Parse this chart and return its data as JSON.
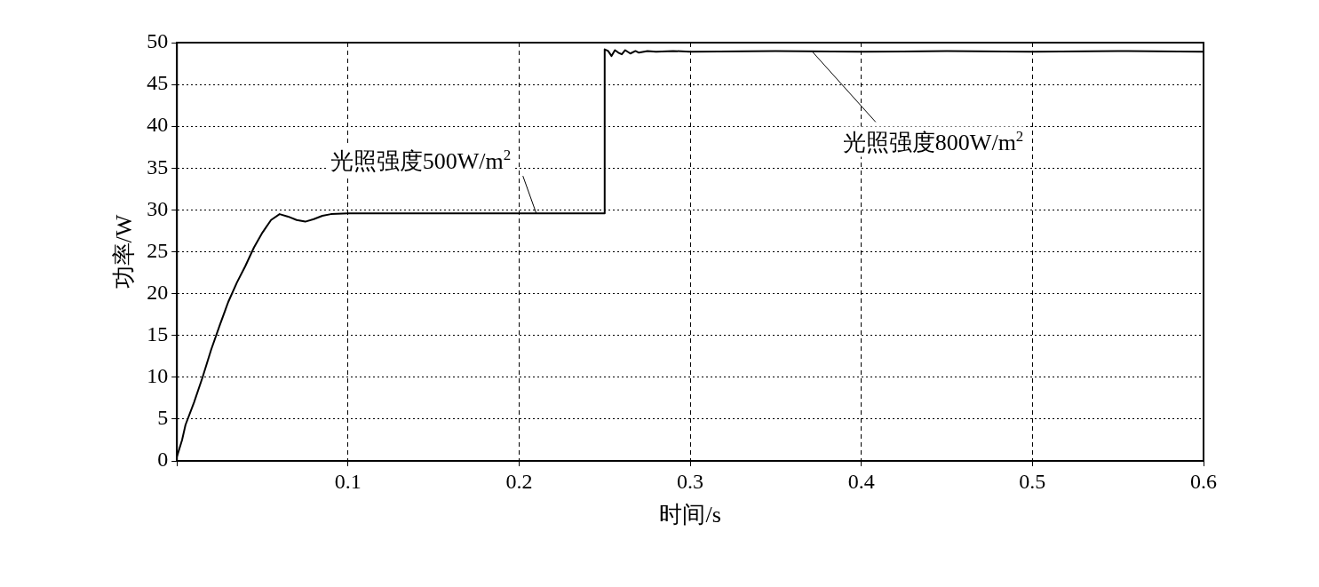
{
  "chart_data": {
    "type": "line",
    "xlabel": "时间/s",
    "ylabel": "功率/W",
    "xlim": [
      0,
      0.6
    ],
    "xticks": [
      {
        "value": 0,
        "label": null
      },
      0.1,
      0.2,
      0.3,
      0.4,
      0.5,
      0.6
    ],
    "ylim": [
      0,
      50
    ],
    "yticks": [
      0,
      5,
      10,
      15,
      20,
      25,
      30,
      35,
      40,
      45,
      50
    ],
    "grid": true,
    "legend": false,
    "marker": "none",
    "line_style": "solid",
    "annotations": [
      {
        "text": "光照强度500W/m$^{2}$",
        "x": 0.21,
        "y": 29.6
      },
      {
        "text": "光照强度800W/m$^{2}$",
        "x": 0.371,
        "y": 49
      }
    ],
    "series": [
      {
        "color": "#000000",
        "x": [
          0,
          0.003,
          0.005,
          0.01,
          0.015,
          0.02,
          0.025,
          0.03,
          0.035,
          0.04,
          0.045,
          0.05,
          0.055,
          0.06,
          0.065,
          0.07,
          0.075,
          0.08,
          0.085,
          0.09,
          0.1,
          0.15,
          0.2,
          0.25,
          0.25,
          0.252,
          0.254,
          0.256,
          0.258,
          0.26,
          0.262,
          0.265,
          0.268,
          0.27,
          0.275,
          0.28,
          0.29,
          0.3,
          0.35,
          0.4,
          0.45,
          0.5,
          0.55,
          0.6
        ],
        "values": [
          0.5,
          2.5,
          4.3,
          7,
          10,
          13.3,
          16.2,
          19,
          21.3,
          23.3,
          25.5,
          27.3,
          28.8,
          29.5,
          29.2,
          28.8,
          28.6,
          28.9,
          29.3,
          29.5,
          29.6,
          29.6,
          29.6,
          29.6,
          49.2,
          49,
          48.4,
          49.1,
          48.8,
          48.6,
          49.1,
          48.7,
          49,
          48.8,
          49,
          48.9,
          49,
          48.9,
          49,
          48.9,
          49,
          48.9,
          49,
          48.9
        ]
      }
    ]
  }
}
